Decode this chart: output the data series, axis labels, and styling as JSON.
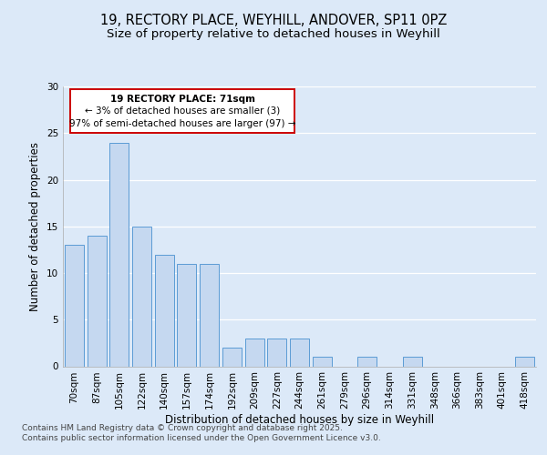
{
  "title1": "19, RECTORY PLACE, WEYHILL, ANDOVER, SP11 0PZ",
  "title2": "Size of property relative to detached houses in Weyhill",
  "xlabel": "Distribution of detached houses by size in Weyhill",
  "ylabel": "Number of detached properties",
  "categories": [
    "70sqm",
    "87sqm",
    "105sqm",
    "122sqm",
    "140sqm",
    "157sqm",
    "174sqm",
    "192sqm",
    "209sqm",
    "227sqm",
    "244sqm",
    "261sqm",
    "279sqm",
    "296sqm",
    "314sqm",
    "331sqm",
    "348sqm",
    "366sqm",
    "383sqm",
    "401sqm",
    "418sqm"
  ],
  "values": [
    13,
    14,
    24,
    15,
    12,
    11,
    11,
    2,
    3,
    3,
    3,
    1,
    0,
    1,
    0,
    1,
    0,
    0,
    0,
    0,
    1
  ],
  "bar_color": "#c5d8f0",
  "bar_edge_color": "#5b9bd5",
  "annotation_line1": "19 RECTORY PLACE: 71sqm",
  "annotation_line2": "← 3% of detached houses are smaller (3)",
  "annotation_line3": "97% of semi-detached houses are larger (97) →",
  "annotation_box_color": "#ffffff",
  "annotation_box_edge": "#cc0000",
  "bg_color": "#dce9f8",
  "plot_bg_color": "#dce9f8",
  "footer_text": "Contains HM Land Registry data © Crown copyright and database right 2025.\nContains public sector information licensed under the Open Government Licence v3.0.",
  "ylim": [
    0,
    30
  ],
  "yticks": [
    0,
    5,
    10,
    15,
    20,
    25,
    30
  ],
  "grid_color": "#ffffff",
  "title_fontsize": 10.5,
  "subtitle_fontsize": 9.5,
  "axis_label_fontsize": 8.5,
  "tick_fontsize": 7.5,
  "annotation_fontsize": 7.5,
  "footer_fontsize": 6.5
}
